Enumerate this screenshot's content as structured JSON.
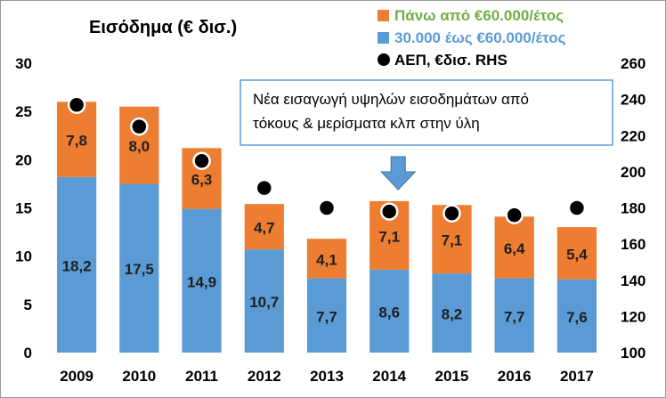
{
  "chart_data": {
    "type": "bar",
    "title": "Εισόδημα (€ δισ.)",
    "categories": [
      "2009",
      "2010",
      "2011",
      "2012",
      "2013",
      "2014",
      "2015",
      "2016",
      "2017"
    ],
    "series": [
      {
        "name": "30.000 έως €60.000/έτος",
        "values": [
          18.2,
          17.5,
          14.9,
          10.7,
          7.7,
          8.6,
          8.2,
          7.7,
          7.6
        ],
        "labels": [
          "18,2",
          "17,5",
          "14,9",
          "10,7",
          "7,7",
          "8,6",
          "8,2",
          "7,7",
          "7,6"
        ],
        "color": "#5b9bd5",
        "label_color": "#1f1f1f"
      },
      {
        "name": "Πάνω από €60.000/έτος",
        "values": [
          7.8,
          8.0,
          6.3,
          4.7,
          4.1,
          7.1,
          7.1,
          6.4,
          5.4
        ],
        "labels": [
          "7,8",
          "8,0",
          "6,3",
          "4,7",
          "4,1",
          "7,1",
          "7,1",
          "6,4",
          "5,4"
        ],
        "color": "#ed7d31",
        "label_color": "#1f1f1f"
      },
      {
        "name": "ΑΕΠ, €δισ. RHS",
        "type": "scatter",
        "axis": "right",
        "values": [
          237,
          225,
          206,
          191,
          180,
          178,
          177,
          176,
          180
        ],
        "color": "#000000"
      }
    ],
    "stacked": true,
    "ylim": [
      0,
      30
    ],
    "yticks": [
      "0",
      "5",
      "10",
      "15",
      "20",
      "25",
      "30"
    ],
    "y2lim": [
      100,
      260
    ],
    "y2ticks": [
      "100",
      "120",
      "140",
      "160",
      "180",
      "200",
      "220",
      "240",
      "260"
    ],
    "legend": {
      "placement": "top-right",
      "text_colors": [
        "#70ad47",
        "#5b9bd5",
        "#000000"
      ]
    },
    "annotation": {
      "text_lines": [
        "Νέα εισαγωγή υψηλών εισοδημάτων από",
        "τόκους & μερίσματα κλπ στην ύλη"
      ],
      "border_color": "#5b9bd5",
      "arrow_color": "#5b9bd5",
      "category": "2014"
    },
    "grid": false
  }
}
